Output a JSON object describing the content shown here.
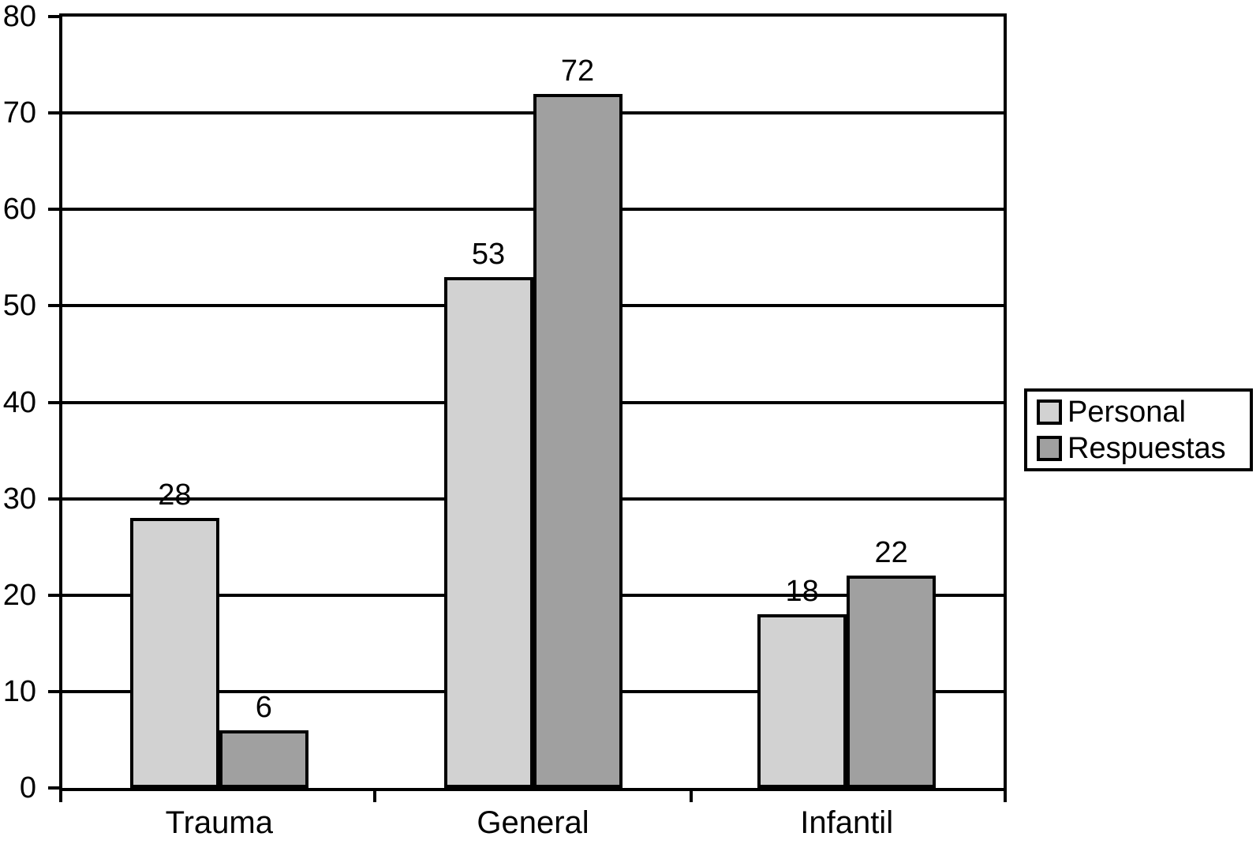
{
  "chart_data": {
    "type": "bar",
    "categories": [
      "Trauma",
      "General",
      "Infantil"
    ],
    "series": [
      {
        "name": "Personal",
        "color": "#d2d2d2",
        "values": [
          28,
          53,
          18
        ]
      },
      {
        "name": "Respuestas",
        "color": "#a0a0a0",
        "values": [
          6,
          72,
          22
        ]
      }
    ],
    "title": "",
    "xlabel": "",
    "ylabel": "",
    "ylim": [
      0,
      80
    ],
    "yticks": [
      0,
      10,
      20,
      30,
      40,
      50,
      60,
      70,
      80
    ],
    "grid": true,
    "bar_value_labels": [
      [
        "28",
        "6"
      ],
      [
        "53",
        "72"
      ],
      [
        "18",
        "22"
      ]
    ],
    "y_tick_labels": [
      "0",
      "10",
      "20",
      "30",
      "40",
      "50",
      "60",
      "70",
      "80"
    ],
    "legend_position": "right-outside",
    "legend_entries": [
      "Personal",
      "Respuestas"
    ]
  },
  "colors": {
    "axis_line": "#000000",
    "text": "#000000",
    "background": "#ffffff",
    "series_personal": "#d2d2d2",
    "series_respuestas": "#a0a0a0"
  }
}
